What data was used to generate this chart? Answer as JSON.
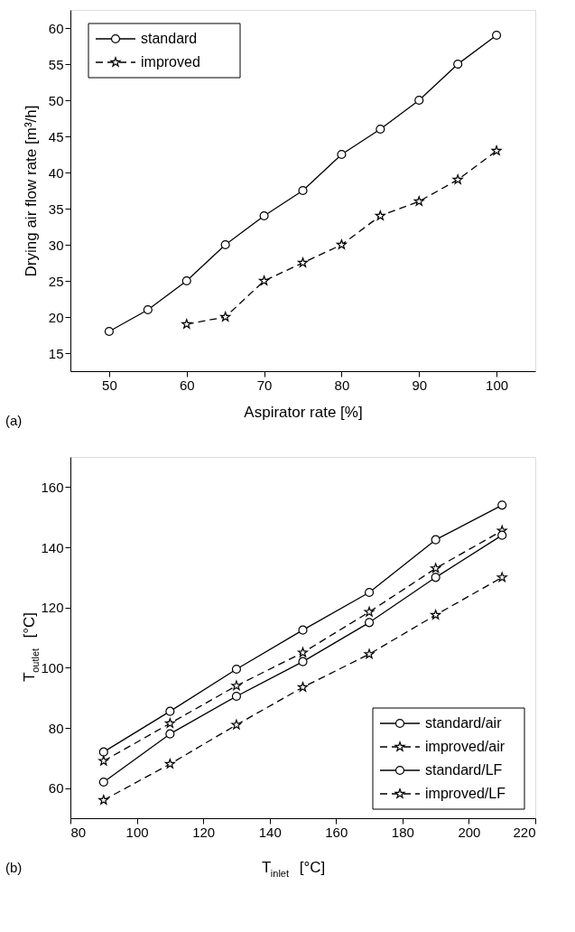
{
  "chart_data": [
    {
      "type": "line",
      "xlabel": "Aspirator rate [%]",
      "ylabel": "Drying air flow rate [m³/h]",
      "annotations": [
        "(a)"
      ],
      "xlim": [
        45,
        105
      ],
      "xticks": [
        50,
        60,
        70,
        80,
        90,
        100
      ],
      "ylim": [
        12.5,
        62.5
      ],
      "yticks": [
        15,
        20,
        25,
        30,
        35,
        40,
        45,
        50,
        55,
        60
      ],
      "grid": false,
      "legend": "top left",
      "series": [
        {
          "name": "standard",
          "color": "#000000",
          "marker": "circle",
          "line_style": "solid",
          "x": [
            50,
            55,
            60,
            65,
            70,
            75,
            80,
            85,
            90,
            95,
            100
          ],
          "values": [
            18,
            21,
            25,
            30,
            34,
            37.5,
            42.5,
            46,
            50,
            55,
            59
          ]
        },
        {
          "name": "improved",
          "color": "#000000",
          "marker": "star",
          "line_style": "dashed",
          "x": [
            60,
            65,
            70,
            75,
            80,
            85,
            90,
            95,
            100
          ],
          "values": [
            19,
            20,
            25,
            27.5,
            30,
            34,
            36,
            39,
            43
          ]
        }
      ]
    },
    {
      "type": "line",
      "xlabel": "T$_{inlet}$ [°C]",
      "ylabel": "T$_{outlet}$ [°C]",
      "annotations": [
        "(b)"
      ],
      "xlim": [
        80,
        220
      ],
      "xticks": [
        80,
        100,
        120,
        140,
        160,
        180,
        200,
        220
      ],
      "ylim": [
        50,
        170
      ],
      "yticks": [
        60,
        80,
        100,
        120,
        140,
        160
      ],
      "grid": false,
      "legend": "bottom right",
      "series": [
        {
          "name": "standard/air",
          "color": "#000000",
          "marker": "circle",
          "line_style": "solid",
          "x": [
            90,
            110,
            130,
            150,
            170,
            190,
            210
          ],
          "values": [
            72,
            85.5,
            99.5,
            112.5,
            125,
            142.5,
            154
          ]
        },
        {
          "name": "improved/air",
          "color": "#000000",
          "marker": "star",
          "line_style": "dashed",
          "x": [
            90,
            110,
            130,
            150,
            170,
            190,
            210
          ],
          "values": [
            69,
            81.5,
            94,
            105,
            118.5,
            133,
            145.5
          ]
        },
        {
          "name": "standard/LF",
          "color": "#000000",
          "marker": "circle",
          "line_style": "solid",
          "x": [
            90,
            110,
            130,
            150,
            170,
            190,
            210
          ],
          "values": [
            62,
            78,
            90.5,
            102,
            115,
            130,
            144
          ]
        },
        {
          "name": "improved/LF",
          "color": "#000000",
          "marker": "star",
          "line_style": "dashed",
          "x": [
            90,
            110,
            130,
            150,
            170,
            190,
            210
          ],
          "values": [
            56,
            68,
            81,
            93.5,
            104.5,
            117.5,
            130
          ]
        }
      ]
    }
  ]
}
